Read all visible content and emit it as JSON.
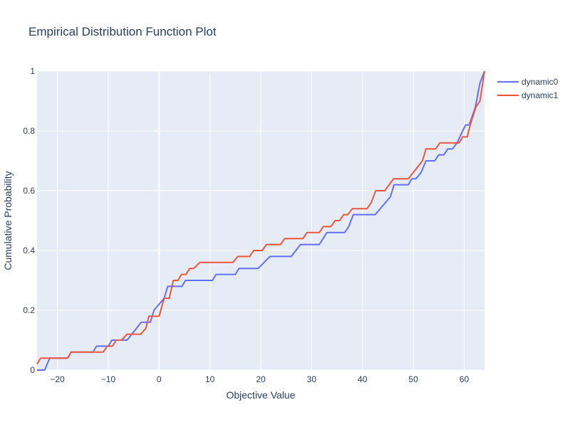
{
  "chart_data": {
    "type": "line",
    "title": "Empirical Distribution Function Plot",
    "xlabel": "Objective Value",
    "ylabel": "Cumulative Probability",
    "xlim": [
      -24,
      64
    ],
    "ylim": [
      0,
      1
    ],
    "x_ticks": [
      -20,
      -10,
      0,
      10,
      20,
      30,
      40,
      50,
      60
    ],
    "x_tick_labels": [
      "−20",
      "−10",
      "0",
      "10",
      "20",
      "30",
      "40",
      "50",
      "60"
    ],
    "y_ticks": [
      0,
      0.2,
      0.4,
      0.6,
      0.8,
      1
    ],
    "y_tick_labels": [
      "0",
      "0.2",
      "0.4",
      "0.6",
      "0.8",
      "1"
    ],
    "grid": true,
    "legend_position": "top-right",
    "series": [
      {
        "name": "dynamic0",
        "color": "#636efa",
        "points": [
          [
            -24,
            0
          ],
          [
            -22.5,
            0
          ],
          [
            -21.5,
            0.04
          ],
          [
            -18,
            0.04
          ],
          [
            -17.3,
            0.06
          ],
          [
            -13,
            0.06
          ],
          [
            -12.3,
            0.08
          ],
          [
            -10,
            0.08
          ],
          [
            -9.3,
            0.1
          ],
          [
            -6.3,
            0.1
          ],
          [
            -3.5,
            0.16
          ],
          [
            -1.7,
            0.16
          ],
          [
            -1,
            0.2
          ],
          [
            1,
            0.24
          ],
          [
            1.7,
            0.28
          ],
          [
            4.5,
            0.28
          ],
          [
            5.2,
            0.3
          ],
          [
            10.5,
            0.3
          ],
          [
            11.2,
            0.32
          ],
          [
            15,
            0.32
          ],
          [
            15.7,
            0.34
          ],
          [
            19.5,
            0.34
          ],
          [
            21.8,
            0.38
          ],
          [
            26,
            0.38
          ],
          [
            27.8,
            0.42
          ],
          [
            31.5,
            0.42
          ],
          [
            33,
            0.46
          ],
          [
            36.5,
            0.46
          ],
          [
            37.3,
            0.48
          ],
          [
            38.2,
            0.52
          ],
          [
            42.5,
            0.52
          ],
          [
            45.5,
            0.58
          ],
          [
            46.2,
            0.62
          ],
          [
            49,
            0.62
          ],
          [
            49.7,
            0.64
          ],
          [
            50.5,
            0.64
          ],
          [
            51.5,
            0.66
          ],
          [
            52.5,
            0.7
          ],
          [
            54.2,
            0.7
          ],
          [
            55,
            0.72
          ],
          [
            56,
            0.72
          ],
          [
            56.8,
            0.74
          ],
          [
            57.7,
            0.74
          ],
          [
            58.6,
            0.76
          ],
          [
            59.7,
            0.8
          ],
          [
            60.3,
            0.82
          ],
          [
            61,
            0.82
          ],
          [
            62.2,
            0.88
          ],
          [
            63.1,
            0.96
          ],
          [
            64,
            1
          ]
        ]
      },
      {
        "name": "dynamic1",
        "color": "#ef553b",
        "points": [
          [
            -24,
            0.02
          ],
          [
            -23.3,
            0.04
          ],
          [
            -18,
            0.04
          ],
          [
            -17.3,
            0.06
          ],
          [
            -11,
            0.06
          ],
          [
            -10.2,
            0.08
          ],
          [
            -9.2,
            0.08
          ],
          [
            -8.4,
            0.1
          ],
          [
            -7.4,
            0.1
          ],
          [
            -6.3,
            0.12
          ],
          [
            -3.6,
            0.12
          ],
          [
            -2.6,
            0.14
          ],
          [
            -2,
            0.18
          ],
          [
            0,
            0.18
          ],
          [
            1,
            0.24
          ],
          [
            2,
            0.24
          ],
          [
            2.8,
            0.3
          ],
          [
            3.7,
            0.3
          ],
          [
            4.4,
            0.32
          ],
          [
            5.3,
            0.32
          ],
          [
            6,
            0.34
          ],
          [
            6.8,
            0.34
          ],
          [
            8,
            0.36
          ],
          [
            14.5,
            0.36
          ],
          [
            15.5,
            0.38
          ],
          [
            17.8,
            0.38
          ],
          [
            18.6,
            0.4
          ],
          [
            20.3,
            0.4
          ],
          [
            21.1,
            0.42
          ],
          [
            23.9,
            0.42
          ],
          [
            24.7,
            0.44
          ],
          [
            28.3,
            0.44
          ],
          [
            29.1,
            0.46
          ],
          [
            31.5,
            0.46
          ],
          [
            32.3,
            0.48
          ],
          [
            33.8,
            0.48
          ],
          [
            34.6,
            0.5
          ],
          [
            35.5,
            0.5
          ],
          [
            36.3,
            0.52
          ],
          [
            37.1,
            0.52
          ],
          [
            38,
            0.54
          ],
          [
            40.9,
            0.54
          ],
          [
            41.7,
            0.56
          ],
          [
            42.6,
            0.6
          ],
          [
            44.4,
            0.6
          ],
          [
            46.1,
            0.64
          ],
          [
            49,
            0.64
          ],
          [
            51.8,
            0.7
          ],
          [
            52.5,
            0.74
          ],
          [
            54.4,
            0.74
          ],
          [
            55.2,
            0.76
          ],
          [
            59,
            0.76
          ],
          [
            59.7,
            0.78
          ],
          [
            60.6,
            0.78
          ],
          [
            61.2,
            0.82
          ],
          [
            62.3,
            0.88
          ],
          [
            63.1,
            0.9
          ],
          [
            64,
            1
          ]
        ]
      }
    ]
  }
}
